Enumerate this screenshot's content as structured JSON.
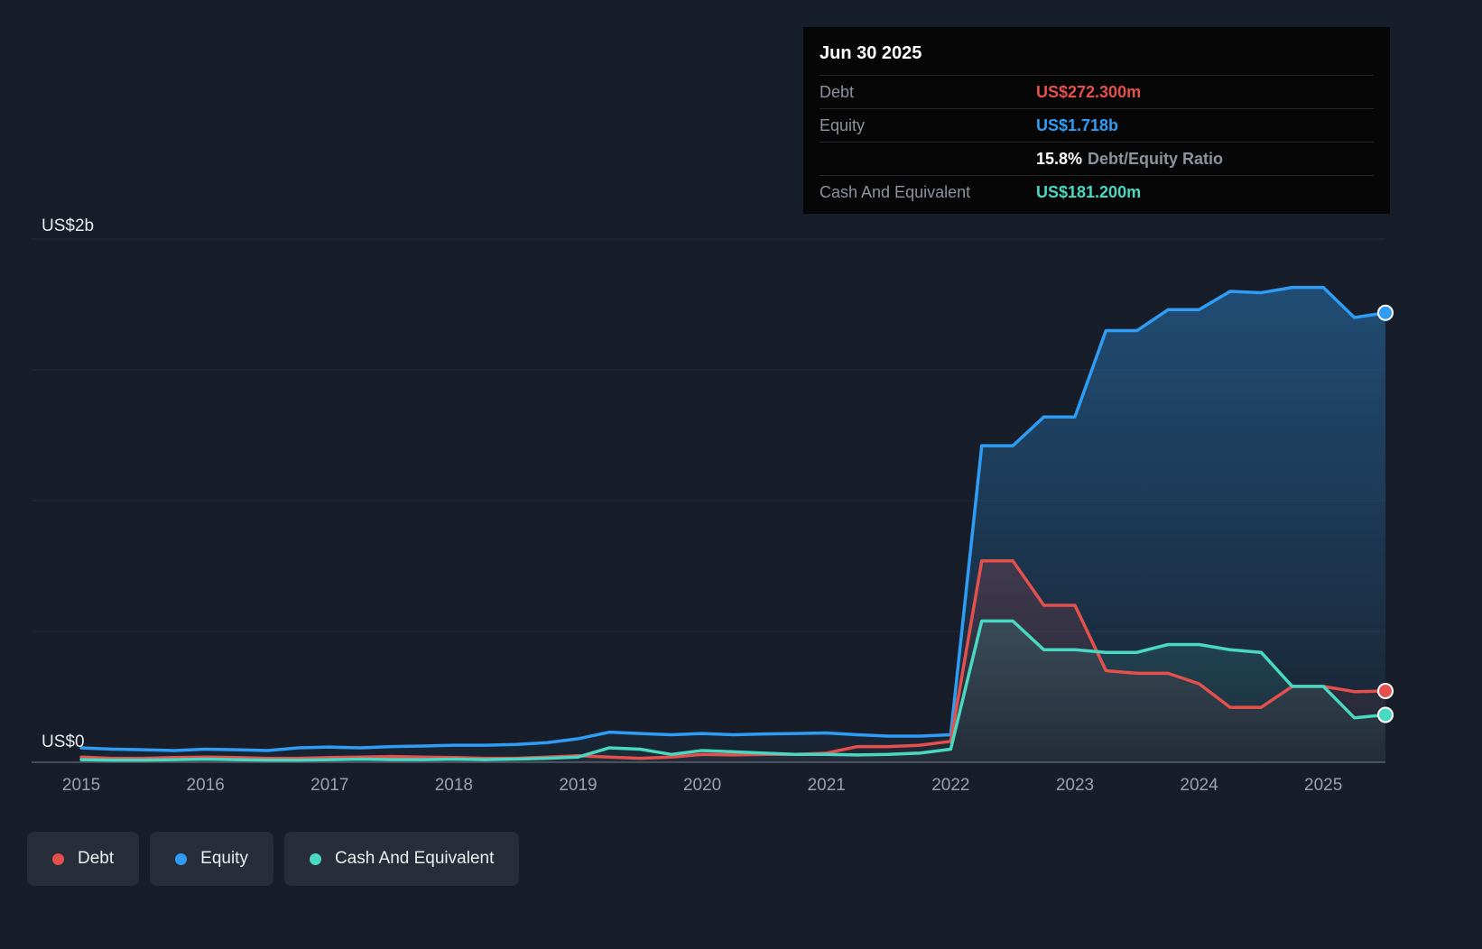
{
  "tooltip": {
    "date": "Jun 30 2025",
    "debt": {
      "label": "Debt",
      "value": "US$272.300m",
      "color": "#e4504b"
    },
    "equity": {
      "label": "Equity",
      "value": "US$1.718b",
      "color": "#2f9df5"
    },
    "ratio": {
      "value": "15.8%",
      "label": "Debt/Equity Ratio"
    },
    "cash": {
      "label": "Cash And Equivalent",
      "value": "US$181.200m",
      "color": "#49d9c3"
    }
  },
  "axis": {
    "y_top": "US$2b",
    "y_zero": "US$0"
  },
  "legend": {
    "items": [
      {
        "label": "Debt",
        "color": "#e4504b"
      },
      {
        "label": "Equity",
        "color": "#2f9df5"
      },
      {
        "label": "Cash And Equivalent",
        "color": "#49d9c3"
      }
    ]
  },
  "chart_data": {
    "type": "area",
    "y_unit": "US$ billions",
    "grid": "horizontal",
    "legend_position": "bottom-left",
    "xlim": [
      2014.6,
      2025.5
    ],
    "ylim": [
      0,
      2
    ],
    "y_gridlines": [
      0,
      0.5,
      1,
      1.5,
      2
    ],
    "x_ticks": [
      2015,
      2016,
      2017,
      2018,
      2019,
      2020,
      2021,
      2022,
      2023,
      2024,
      2025
    ],
    "x": [
      2015,
      2015.25,
      2015.5,
      2015.75,
      2016,
      2016.25,
      2016.5,
      2016.75,
      2017,
      2017.25,
      2017.5,
      2017.75,
      2018,
      2018.25,
      2018.5,
      2018.75,
      2019,
      2019.25,
      2019.5,
      2019.75,
      2020,
      2020.25,
      2020.5,
      2020.75,
      2021,
      2021.25,
      2021.5,
      2021.75,
      2022,
      2022.25,
      2022.5,
      2022.75,
      2023,
      2023.25,
      2023.5,
      2023.75,
      2024,
      2024.25,
      2024.5,
      2024.75,
      2025,
      2025.25,
      2025.5
    ],
    "series": [
      {
        "name": "Equity",
        "color": "#2f9df5",
        "final_label": "US$1.718b",
        "values": [
          0.055,
          0.05,
          0.048,
          0.045,
          0.05,
          0.048,
          0.045,
          0.055,
          0.058,
          0.055,
          0.06,
          0.062,
          0.065,
          0.065,
          0.068,
          0.075,
          0.09,
          0.115,
          0.11,
          0.105,
          0.11,
          0.105,
          0.108,
          0.11,
          0.112,
          0.105,
          0.1,
          0.1,
          0.105,
          1.21,
          1.21,
          1.32,
          1.32,
          1.65,
          1.65,
          1.73,
          1.73,
          1.8,
          1.795,
          1.815,
          1.815,
          1.7,
          1.718
        ]
      },
      {
        "name": "Debt",
        "color": "#e4504b",
        "final_label": "US$272.300m",
        "values": [
          0.02,
          0.015,
          0.015,
          0.018,
          0.02,
          0.018,
          0.015,
          0.015,
          0.018,
          0.02,
          0.022,
          0.02,
          0.018,
          0.015,
          0.015,
          0.02,
          0.025,
          0.02,
          0.015,
          0.02,
          0.03,
          0.028,
          0.03,
          0.03,
          0.035,
          0.06,
          0.06,
          0.065,
          0.08,
          0.77,
          0.77,
          0.6,
          0.6,
          0.35,
          0.34,
          0.34,
          0.3,
          0.21,
          0.21,
          0.29,
          0.29,
          0.27,
          0.2723
        ]
      },
      {
        "name": "Cash And Equivalent",
        "color": "#49d9c3",
        "final_label": "US$181.200m",
        "values": [
          0.01,
          0.008,
          0.008,
          0.01,
          0.012,
          0.01,
          0.008,
          0.008,
          0.01,
          0.012,
          0.01,
          0.01,
          0.012,
          0.01,
          0.012,
          0.015,
          0.02,
          0.055,
          0.05,
          0.03,
          0.045,
          0.04,
          0.035,
          0.03,
          0.03,
          0.028,
          0.03,
          0.035,
          0.05,
          0.54,
          0.54,
          0.43,
          0.43,
          0.42,
          0.42,
          0.45,
          0.45,
          0.43,
          0.42,
          0.29,
          0.29,
          0.17,
          0.1812
        ]
      }
    ]
  }
}
